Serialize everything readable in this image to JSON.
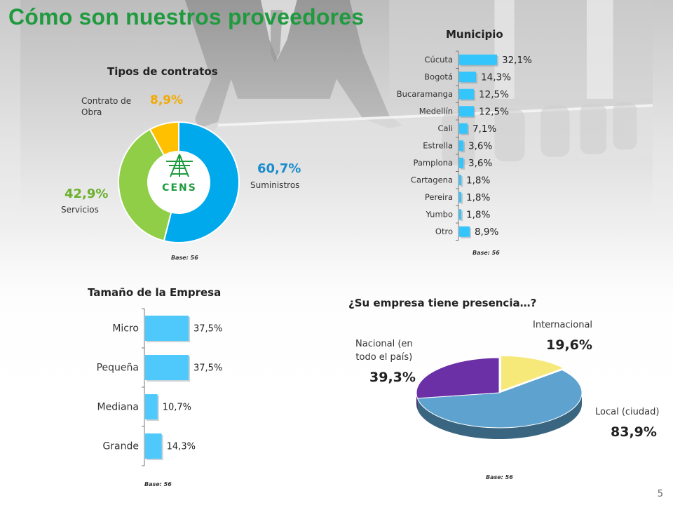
{
  "page": {
    "title": "Cómo son nuestros proveedores",
    "page_number": "5"
  },
  "chart_data": [
    {
      "type": "pie",
      "title": "Tipos de contratos",
      "donut": true,
      "center_logo": "CENS",
      "slices": [
        {
          "name": "Suministros",
          "value": 60.7,
          "label": "60,7%",
          "color": "#00a9ec"
        },
        {
          "name": "Servicios",
          "value": 42.9,
          "label": "42,9%",
          "color": "#8fce46"
        },
        {
          "name": "Contrato de Obra",
          "value": 8.9,
          "label": "8,9%",
          "color": "#ffc000"
        }
      ],
      "base": "Base: 56"
    },
    {
      "type": "bar",
      "orientation": "horizontal",
      "title": "Municipio",
      "categories": [
        "Cúcuta",
        "Bogotá",
        "Bucaramanga",
        "Medellín",
        "Cali",
        "Estrella",
        "Pamplona",
        "Cartagena",
        "Pereira",
        "Yumbo",
        "Otro"
      ],
      "values": [
        32.1,
        14.3,
        12.5,
        12.5,
        7.1,
        3.6,
        3.6,
        1.8,
        1.8,
        1.8,
        8.9
      ],
      "labels": [
        "32,1%",
        "14,3%",
        "12,5%",
        "12,5%",
        "7,1%",
        "3,6%",
        "3,6%",
        "1,8%",
        "1,8%",
        "1,8%",
        "8,9%"
      ],
      "color": "#33c5fb",
      "base": "Base: 56"
    },
    {
      "type": "bar",
      "orientation": "horizontal",
      "title": "Tamaño de la Empresa",
      "categories": [
        "Micro",
        "Pequeña",
        "Mediana",
        "Grande"
      ],
      "values": [
        37.5,
        37.5,
        10.7,
        14.3
      ],
      "labels": [
        "37,5%",
        "37,5%",
        "10,7%",
        "14,3%"
      ],
      "color": "#4fc9fb",
      "base": "Base: 56"
    },
    {
      "type": "pie",
      "title": "¿Su empresa tiene presencia…?",
      "three_d": true,
      "slices": [
        {
          "name": "Internacional",
          "value": 19.6,
          "label": "19,6%",
          "color": "#f7e87a"
        },
        {
          "name": "Local (ciudad)",
          "value": 83.9,
          "label": "83,9%",
          "color": "#5ea3cf"
        },
        {
          "name": "Nacional (en todo el país)",
          "value": 39.3,
          "label": "39,3%",
          "color": "#6b2fa6"
        }
      ],
      "base": "Base: 56"
    }
  ],
  "labels": {
    "contracts_obra_line1": "Contrato de",
    "contracts_obra_line2": "Obra",
    "contracts_servicios": "Servicios",
    "contracts_suministros": "Suministros",
    "presence_nacional_line1": "Nacional (en",
    "presence_nacional_line2": "todo el país)",
    "presence_internacional": "Internacional",
    "presence_local": "Local (ciudad)"
  }
}
